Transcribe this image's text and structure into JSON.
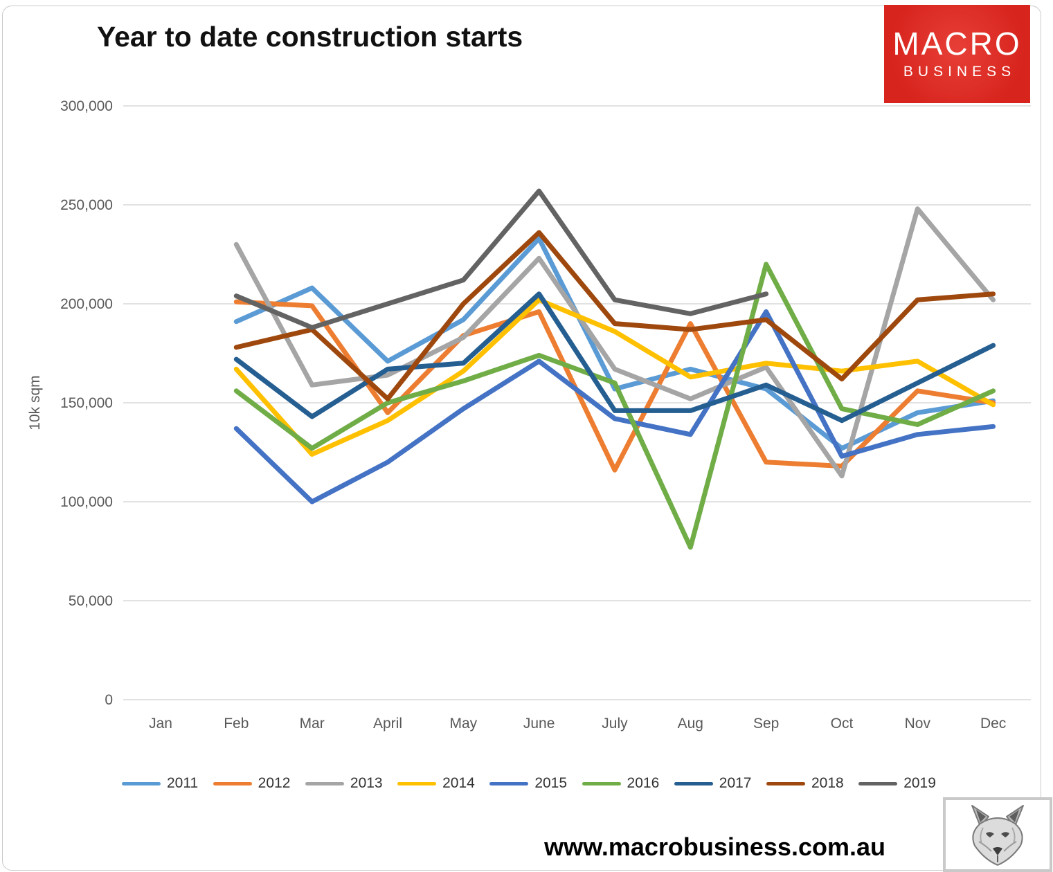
{
  "title": "Year to date construction starts",
  "logo": {
    "line1": "MACRO",
    "line2": "BUSINESS"
  },
  "footer": {
    "url": "www.macrobusiness.com.au",
    "fox_image": "fox-sketch"
  },
  "chart_data": {
    "type": "line",
    "title": "Year to date construction starts",
    "xlabel": "",
    "ylabel": "10k sqm",
    "ylim": [
      0,
      300000
    ],
    "ytick_interval": 50000,
    "yticks_labels": [
      "0",
      "50,000",
      "100,000",
      "150,000",
      "200,000",
      "250,000",
      "300,000"
    ],
    "grid": "horizontal",
    "legend_position": "bottom",
    "categories": [
      "Jan",
      "Feb",
      "Mar",
      "April",
      "May",
      "June",
      "July",
      "Aug",
      "Sep",
      "Oct",
      "Nov",
      "Dec"
    ],
    "series": [
      {
        "name": "2011",
        "color": "#5B9BD5",
        "values": [
          null,
          191000,
          208000,
          171000,
          192000,
          233000,
          157000,
          167000,
          157000,
          127000,
          145000,
          151000
        ]
      },
      {
        "name": "2012",
        "color": "#ED7D31",
        "values": [
          null,
          201000,
          199000,
          145000,
          184000,
          196000,
          116000,
          190000,
          120000,
          118000,
          156000,
          150000
        ]
      },
      {
        "name": "2013",
        "color": "#A5A5A5",
        "values": [
          null,
          230000,
          159000,
          164000,
          183000,
          223000,
          167000,
          152000,
          168000,
          113000,
          248000,
          202000
        ]
      },
      {
        "name": "2014",
        "color": "#FFC000",
        "values": [
          null,
          167000,
          124000,
          141000,
          166000,
          202000,
          186000,
          163000,
          170000,
          166000,
          171000,
          149000
        ]
      },
      {
        "name": "2015",
        "color": "#4472C4",
        "values": [
          null,
          137000,
          100000,
          120000,
          147000,
          171000,
          142000,
          134000,
          196000,
          123000,
          134000,
          138000
        ]
      },
      {
        "name": "2016",
        "color": "#70AD47",
        "values": [
          null,
          156000,
          127000,
          150000,
          161000,
          174000,
          160000,
          77000,
          220000,
          147000,
          139000,
          156000
        ]
      },
      {
        "name": "2017",
        "color": "#255E91",
        "values": [
          null,
          172000,
          143000,
          167000,
          170000,
          205000,
          146000,
          146000,
          159000,
          141000,
          160000,
          179000
        ]
      },
      {
        "name": "2018",
        "color": "#9E480E",
        "values": [
          null,
          178000,
          187000,
          152000,
          200000,
          236000,
          190000,
          187000,
          192000,
          162000,
          202000,
          205000
        ]
      },
      {
        "name": "2019",
        "color": "#636363",
        "values": [
          null,
          204000,
          188000,
          200000,
          212000,
          257000,
          202000,
          195000,
          205000,
          null,
          null,
          null
        ]
      }
    ]
  }
}
